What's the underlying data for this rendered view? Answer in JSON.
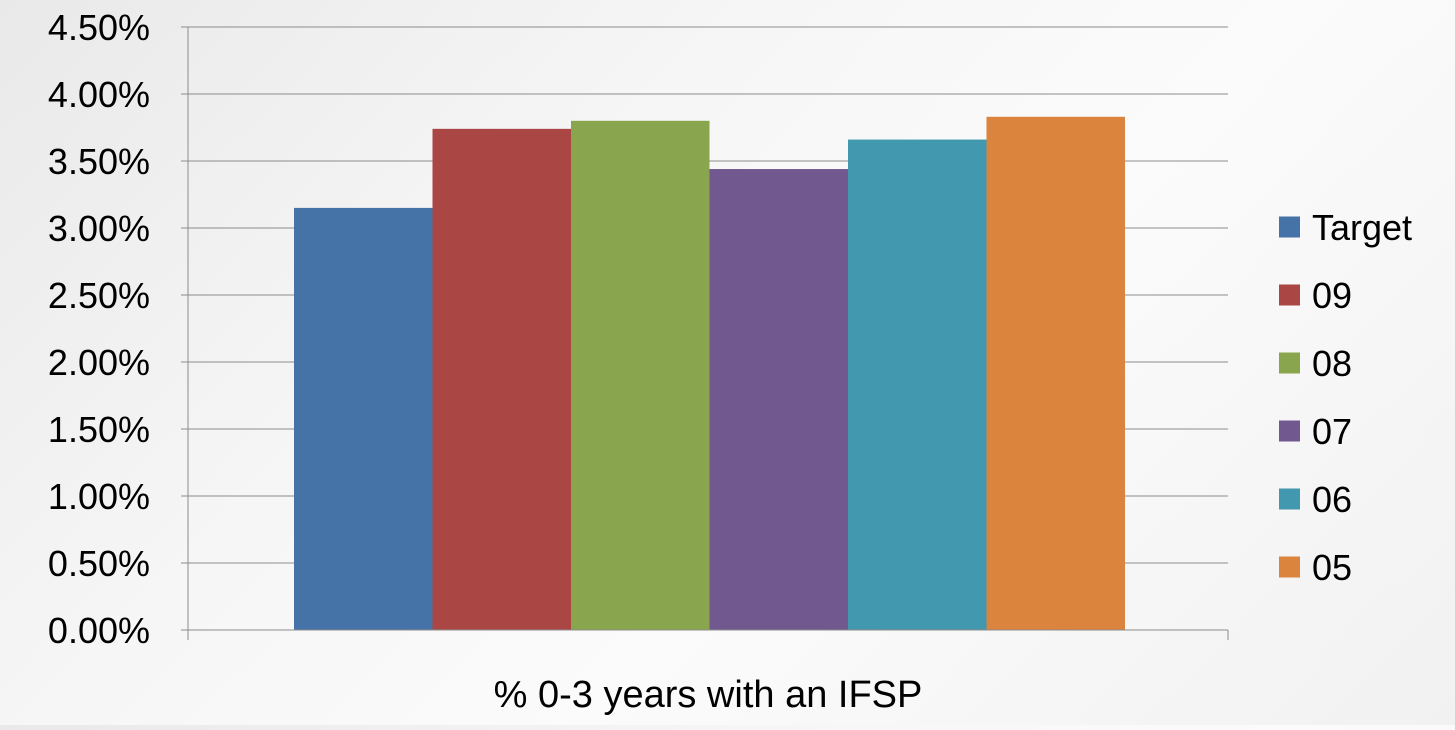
{
  "chart_data": {
    "type": "bar",
    "categories": [
      "% 0-3 years with an IFSP"
    ],
    "xlabel": "% 0-3 years with an IFSP",
    "ylim": [
      0,
      0.045
    ],
    "y_tick_step": 0.005,
    "y_tick_format": "percent_2dp",
    "grid": true,
    "legend_position": "right",
    "series": [
      {
        "name": "Target",
        "color": "#4572A7",
        "values": [
          0.0315
        ]
      },
      {
        "name": "09",
        "color": "#AA4643",
        "values": [
          0.0374
        ]
      },
      {
        "name": "08",
        "color": "#89A54E",
        "values": [
          0.038
        ]
      },
      {
        "name": "07",
        "color": "#71588F",
        "values": [
          0.0344
        ]
      },
      {
        "name": "06",
        "color": "#4198AF",
        "values": [
          0.0366
        ]
      },
      {
        "name": "05",
        "color": "#DB843D",
        "values": [
          0.0383
        ]
      }
    ]
  }
}
